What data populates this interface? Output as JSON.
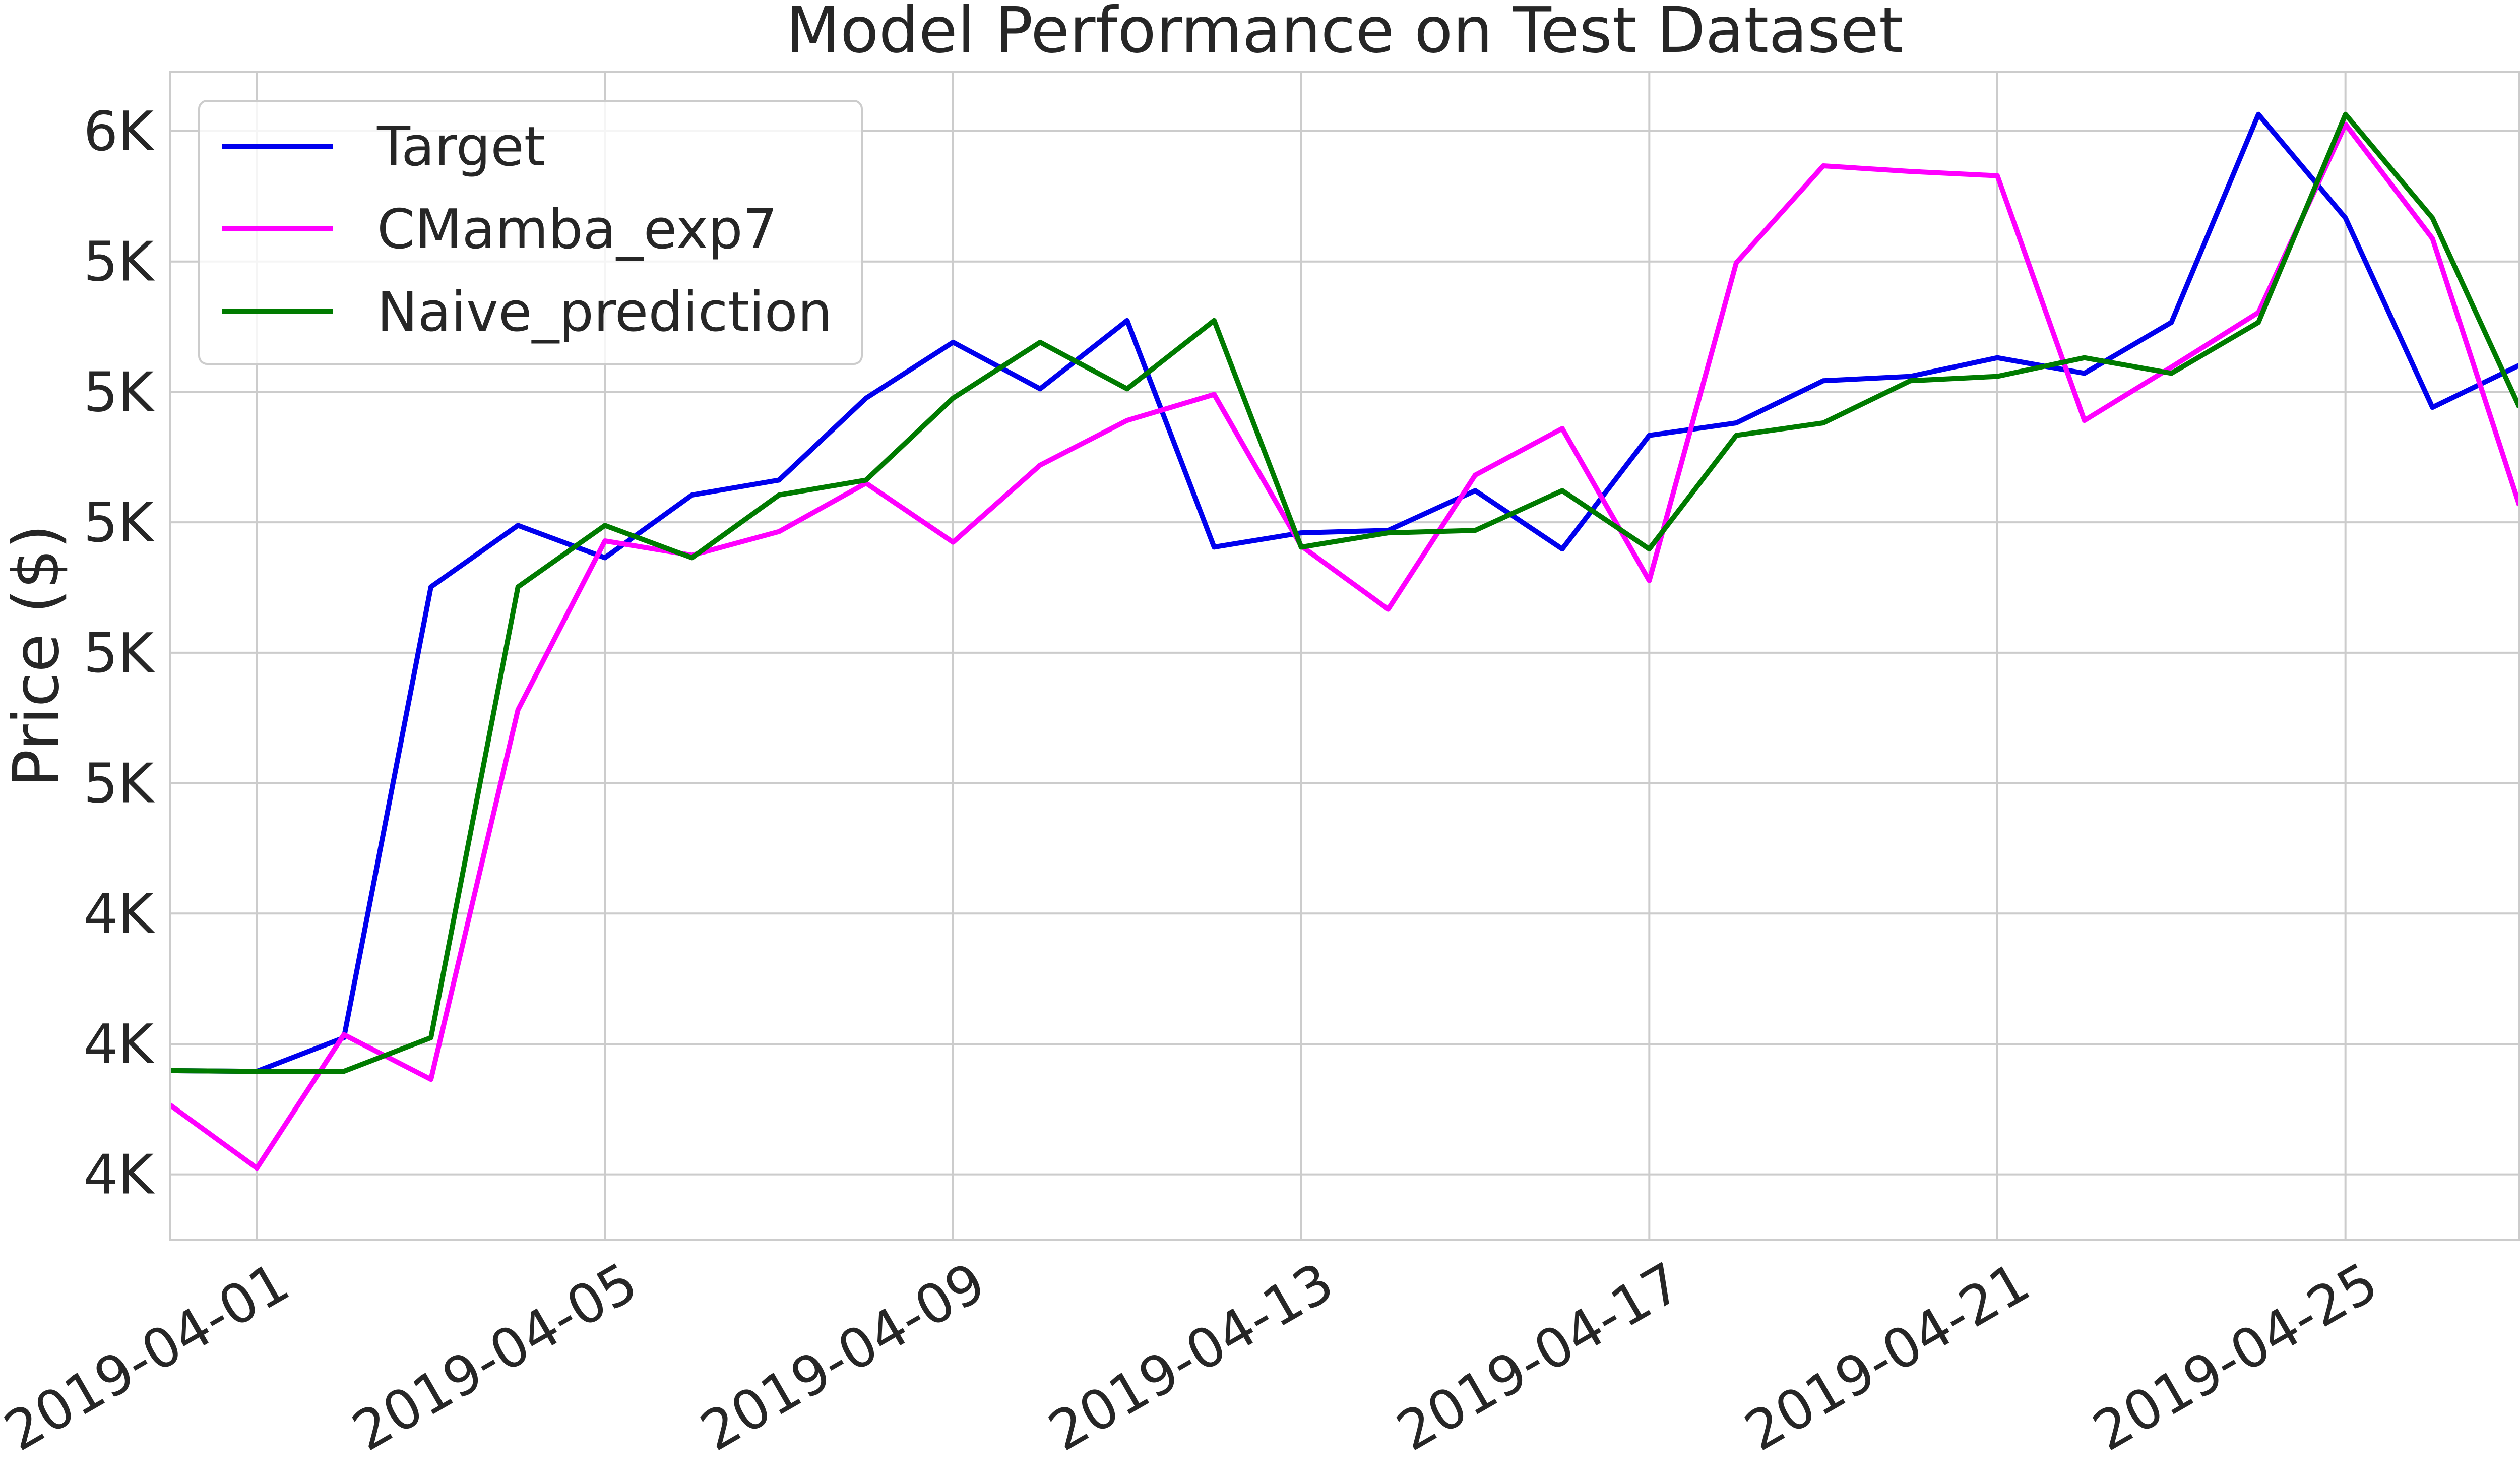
{
  "chart_data": {
    "type": "line",
    "title": "Model Performance on Test Dataset",
    "xlabel": "",
    "ylabel": "Price ($)",
    "grid": true,
    "legend_position": "top-left",
    "x": [
      "2019-03-31",
      "2019-04-01",
      "2019-04-02",
      "2019-04-03",
      "2019-04-04",
      "2019-04-05",
      "2019-04-06",
      "2019-04-07",
      "2019-04-08",
      "2019-04-09",
      "2019-04-10",
      "2019-04-11",
      "2019-04-12",
      "2019-04-13",
      "2019-04-14",
      "2019-04-15",
      "2019-04-16",
      "2019-04-17",
      "2019-04-18",
      "2019-04-19",
      "2019-04-20",
      "2019-04-21",
      "2019-04-22",
      "2019-04-23",
      "2019-04-24",
      "2019-04-25",
      "2019-04-26",
      "2019-04-27"
    ],
    "xlim": [
      "2019-03-31",
      "2019-04-27"
    ],
    "x_ticks": [
      "2019-04-01",
      "2019-04-05",
      "2019-04-09",
      "2019-04-13",
      "2019-04-17",
      "2019-04-21",
      "2019-04-25"
    ],
    "ylim": [
      3825,
      5705
    ],
    "y_ticks": [
      {
        "value": 3930,
        "label": "4K"
      },
      {
        "value": 4140,
        "label": "4K"
      },
      {
        "value": 4350,
        "label": "4K"
      },
      {
        "value": 4560,
        "label": "5K"
      },
      {
        "value": 4770,
        "label": "5K"
      },
      {
        "value": 4980,
        "label": "5K"
      },
      {
        "value": 5190,
        "label": "5K"
      },
      {
        "value": 5400,
        "label": "5K"
      },
      {
        "value": 5610,
        "label": "6K"
      }
    ],
    "series": [
      {
        "name": "Target",
        "color": "#0000ee",
        "values": [
          4097,
          4096,
          4150,
          4876,
          4975,
          4923,
          5024,
          5048,
          5180,
          5270,
          5195,
          5305,
          4940,
          4963,
          4967,
          5031,
          4937,
          5120,
          5140,
          5208,
          5215,
          5245,
          5220,
          5302,
          5637,
          5470,
          5165,
          5233
        ]
      },
      {
        "name": "CMamba_exp7",
        "color": "#ff00ff",
        "values": [
          4042,
          3940,
          4155,
          4083,
          4678,
          4950,
          4927,
          4965,
          5043,
          4948,
          5072,
          5144,
          5186,
          4942,
          4840,
          5056,
          5131,
          4886,
          5398,
          5554,
          5545,
          5538,
          5144,
          5230,
          5318,
          5621,
          5437,
          5007
        ]
      },
      {
        "name": "Naive_prediction",
        "color": "#007b00",
        "values": [
          4097,
          4096,
          4096,
          4150,
          4876,
          4975,
          4923,
          5024,
          5048,
          5180,
          5270,
          5195,
          5305,
          4940,
          4963,
          4967,
          5031,
          4937,
          5120,
          5140,
          5208,
          5215,
          5245,
          5220,
          5302,
          5637,
          5470,
          5165
        ]
      }
    ]
  }
}
